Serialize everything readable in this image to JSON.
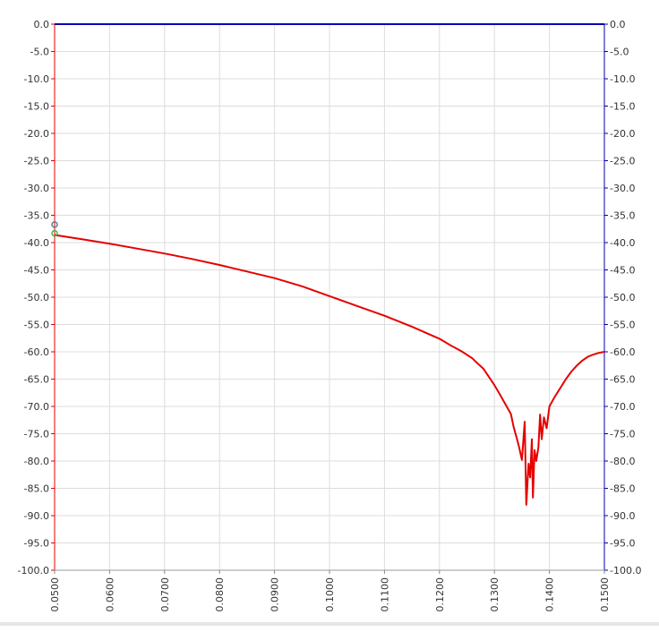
{
  "chart_data": {
    "type": "line",
    "xlim": [
      0.05,
      0.15
    ],
    "ylim": [
      -100,
      0
    ],
    "grid": true,
    "x_ticks": [
      "0.0500",
      "0.0600",
      "0.0700",
      "0.0800",
      "0.0900",
      "0.1000",
      "0.1100",
      "0.1200",
      "0.1300",
      "0.1400",
      "0.1500"
    ],
    "y_ticks_left": [
      "0.0",
      "-5.0",
      "-10.0",
      "-15.0",
      "-20.0",
      "-25.0",
      "-30.0",
      "-35.0",
      "-40.0",
      "-45.0",
      "-50.0",
      "-55.0",
      "-60.0",
      "-65.0",
      "-70.0",
      "-75.0",
      "-80.0",
      "-85.0",
      "-90.0",
      "-95.0",
      "-100.0"
    ],
    "y_ticks_right": [
      "0.0",
      "-5.0",
      "-10.0",
      "-15.0",
      "-20.0",
      "-25.0",
      "-30.0",
      "-35.0",
      "-40.0",
      "-45.0",
      "-50.0",
      "-55.0",
      "-60.0",
      "-65.0",
      "-70.0",
      "-75.0",
      "-80.0",
      "-85.0",
      "-90.0",
      "-95.0",
      "-100.0"
    ],
    "series": [
      {
        "color": "#e60000",
        "points": [
          [
            0.05,
            -38.6
          ],
          [
            0.055,
            -39.4
          ],
          [
            0.06,
            -40.2
          ],
          [
            0.065,
            -41.1
          ],
          [
            0.07,
            -42.0
          ],
          [
            0.075,
            -43.0
          ],
          [
            0.08,
            -44.1
          ],
          [
            0.085,
            -45.3
          ],
          [
            0.09,
            -46.5
          ],
          [
            0.095,
            -48.0
          ],
          [
            0.1,
            -49.8
          ],
          [
            0.105,
            -51.6
          ],
          [
            0.11,
            -53.4
          ],
          [
            0.115,
            -55.4
          ],
          [
            0.12,
            -57.6
          ],
          [
            0.122,
            -58.8
          ],
          [
            0.124,
            -59.9
          ],
          [
            0.126,
            -61.2
          ],
          [
            0.127,
            -62.2
          ],
          [
            0.128,
            -63.1
          ],
          [
            0.129,
            -64.6
          ],
          [
            0.13,
            -66.1
          ],
          [
            0.131,
            -67.8
          ],
          [
            0.132,
            -69.6
          ],
          [
            0.133,
            -71.4
          ],
          [
            0.1335,
            -73.8
          ],
          [
            0.134,
            -75.6
          ],
          [
            0.1345,
            -77.5
          ],
          [
            0.135,
            -79.8
          ],
          [
            0.1355,
            -72.8
          ],
          [
            0.1358,
            -88.0
          ],
          [
            0.1362,
            -80.5
          ],
          [
            0.1365,
            -83.0
          ],
          [
            0.1368,
            -76.0
          ],
          [
            0.137,
            -86.7
          ],
          [
            0.1373,
            -78.0
          ],
          [
            0.1376,
            -80.0
          ],
          [
            0.138,
            -77.5
          ],
          [
            0.1383,
            -71.5
          ],
          [
            0.1386,
            -76.0
          ],
          [
            0.139,
            -72.0
          ],
          [
            0.1395,
            -74.0
          ],
          [
            0.14,
            -70.0
          ],
          [
            0.141,
            -68.2
          ],
          [
            0.142,
            -66.6
          ],
          [
            0.143,
            -65.0
          ],
          [
            0.144,
            -63.6
          ],
          [
            0.145,
            -62.5
          ],
          [
            0.146,
            -61.6
          ],
          [
            0.147,
            -60.9
          ],
          [
            0.148,
            -60.5
          ],
          [
            0.149,
            -60.2
          ],
          [
            0.15,
            -60.0
          ]
        ]
      },
      {
        "color": "#0000b4",
        "points": [
          [
            0.05,
            0
          ],
          [
            0.15,
            0
          ]
        ]
      }
    ],
    "markers": [
      {
        "x": 0.05,
        "y": -36.7,
        "color": "#607d8b"
      },
      {
        "x": 0.05,
        "y": -38.3,
        "color": "#4caf50"
      }
    ]
  }
}
